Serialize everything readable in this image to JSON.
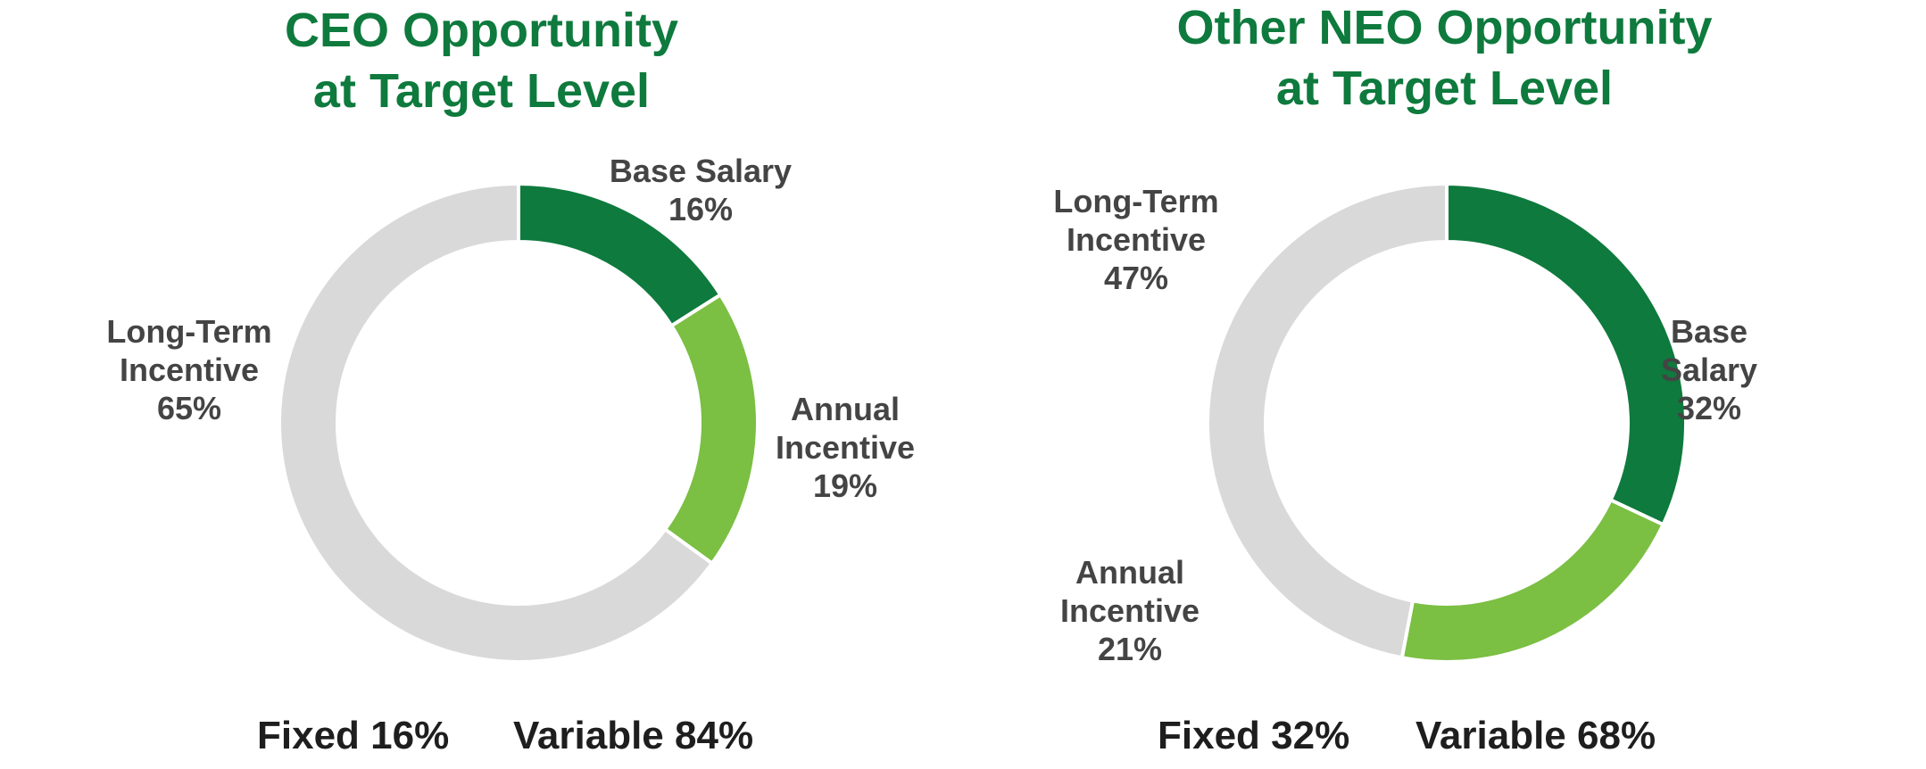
{
  "chart_data": [
    {
      "type": "pie",
      "variant": "donut",
      "title_lines": [
        "CEO Opportunity",
        "at Target Level"
      ],
      "series": [
        {
          "name": "Base Salary",
          "label_lines": [
            "Base Salary",
            "16%"
          ],
          "value": 16,
          "color": "#0e7a3d"
        },
        {
          "name": "Annual Incentive",
          "label_lines": [
            "Annual",
            "Incentive",
            "19%"
          ],
          "value": 19,
          "color": "#7bbf43"
        },
        {
          "name": "Long-Term Incentive",
          "label_lines": [
            "Long-Term",
            "Incentive",
            "65%"
          ],
          "value": 65,
          "color": "#d9d9d9"
        }
      ],
      "summary": {
        "fixed": "Fixed 16%",
        "variable": "Variable 84%"
      }
    },
    {
      "type": "pie",
      "variant": "donut",
      "title_lines": [
        "Other NEO Opportunity",
        "at Target Level"
      ],
      "series": [
        {
          "name": "Base Salary",
          "label_lines": [
            "Base",
            "Salary",
            "32%"
          ],
          "value": 32,
          "color": "#0e7a3d"
        },
        {
          "name": "Annual Incentive",
          "label_lines": [
            "Annual",
            "Incentive",
            "21%"
          ],
          "value": 21,
          "color": "#7bbf43"
        },
        {
          "name": "Long-Term Incentive",
          "label_lines": [
            "Long-Term",
            "Incentive",
            "47%"
          ],
          "value": 47,
          "color": "#d9d9d9"
        }
      ],
      "summary": {
        "fixed": "Fixed 32%",
        "variable": "Variable 68%"
      }
    }
  ]
}
